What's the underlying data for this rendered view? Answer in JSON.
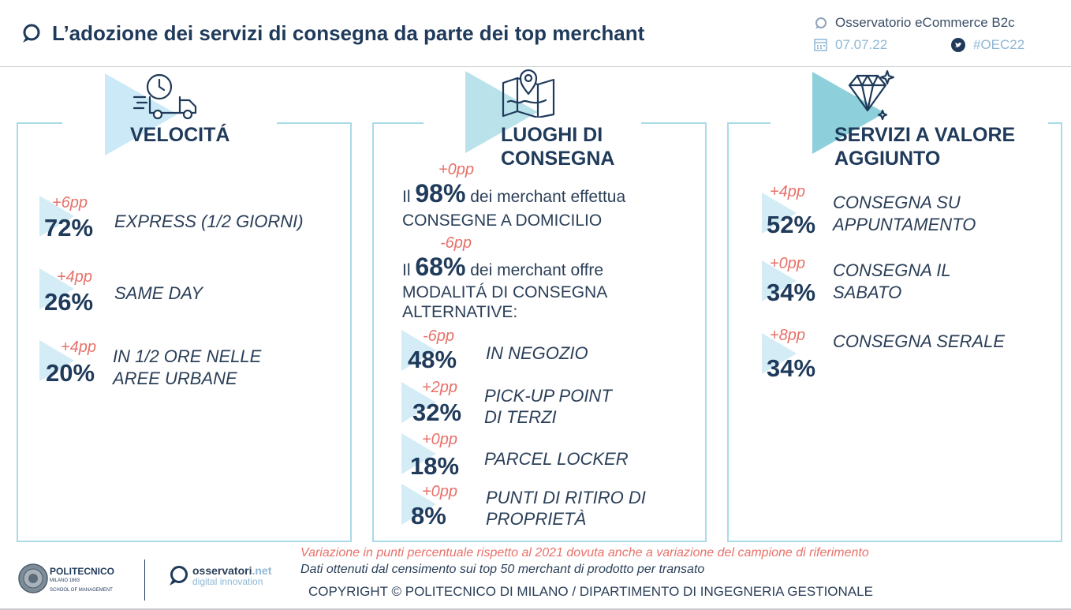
{
  "header": {
    "title": "L’adozione dei servizi di consegna da parte dei top merchant",
    "brand": "Osservatorio eCommerce B2c",
    "date": "07.07.22",
    "hashtag": "#OEC22"
  },
  "colors": {
    "accent": "#a9dbe8",
    "delta": "#e8716a",
    "navy": "#1f3a5a"
  },
  "velocita": {
    "title": "VELOCITÁ",
    "icon": "delivery-truck-clock-icon",
    "items": [
      {
        "delta": "+6pp",
        "pct": "72%",
        "label": "EXPRESS (1/2 GIORNI)"
      },
      {
        "delta": "+4pp",
        "pct": "26%",
        "label": "SAME DAY"
      },
      {
        "delta": "+4pp",
        "pct": "20%",
        "label1": "IN 1/2 ORE NELLE",
        "label2": "AREE URBANE"
      }
    ]
  },
  "luoghi": {
    "title1": "LUOGHI DI",
    "title2": "CONSEGNA",
    "icon": "map-pin-icon",
    "s1": {
      "delta": "+0pp",
      "pre": "Il ",
      "pct": "98%",
      "post": " dei merchant effettua",
      "line2": "CONSEGNE A DOMICILIO"
    },
    "s2": {
      "delta": "-6pp",
      "pre": "Il ",
      "pct": "68%",
      "post": " dei merchant offre",
      "line2": "MODALITÁ DI CONSEGNA",
      "line3": "ALTERNATIVE:"
    },
    "items": [
      {
        "delta": "-6pp",
        "pct": "48%",
        "label": "IN NEGOZIO"
      },
      {
        "delta": "+2pp",
        "pct": "32%",
        "label1": "PICK-UP POINT",
        "label2": "DI TERZI"
      },
      {
        "delta": "+0pp",
        "pct": "18%",
        "label": "PARCEL LOCKER"
      },
      {
        "delta": "+0pp",
        "pct": "8%",
        "label1": "PUNTI DI RITIRO DI",
        "label2": "PROPRIETÀ"
      }
    ]
  },
  "servizi": {
    "title1": "SERVIZI A VALORE",
    "title2": "AGGIUNTO",
    "icon": "diamond-icon",
    "items": [
      {
        "delta": "+4pp",
        "pct": "52%",
        "label1": "CONSEGNA SU",
        "label2": "APPUNTAMENTO"
      },
      {
        "delta": "+0pp",
        "pct": "34%",
        "label1": "CONSEGNA IL",
        "label2": "SABATO"
      },
      {
        "delta": "+8pp",
        "pct": "34%",
        "label": "CONSEGNA SERALE"
      }
    ]
  },
  "footer": {
    "note": "Variazione in punti percentuale rispetto al 2021 dovuta anche a variazione del campione di riferimento",
    "source": "Dati ottenuti dal censimento sui top 50 merchant di prodotto per transato",
    "copyright": "COPYRIGHT © POLITECNICO DI MILANO / DIPARTIMENTO DI INGEGNERIA GESTIONALE",
    "poli_name": "POLITECNICO",
    "poli_sub1": "MILANO 1863",
    "poli_sub2": "SCHOOL OF MANAGEMENT",
    "oss_name": "osservatori",
    "oss_ext": ".net",
    "oss_sub": "digital innovation"
  }
}
